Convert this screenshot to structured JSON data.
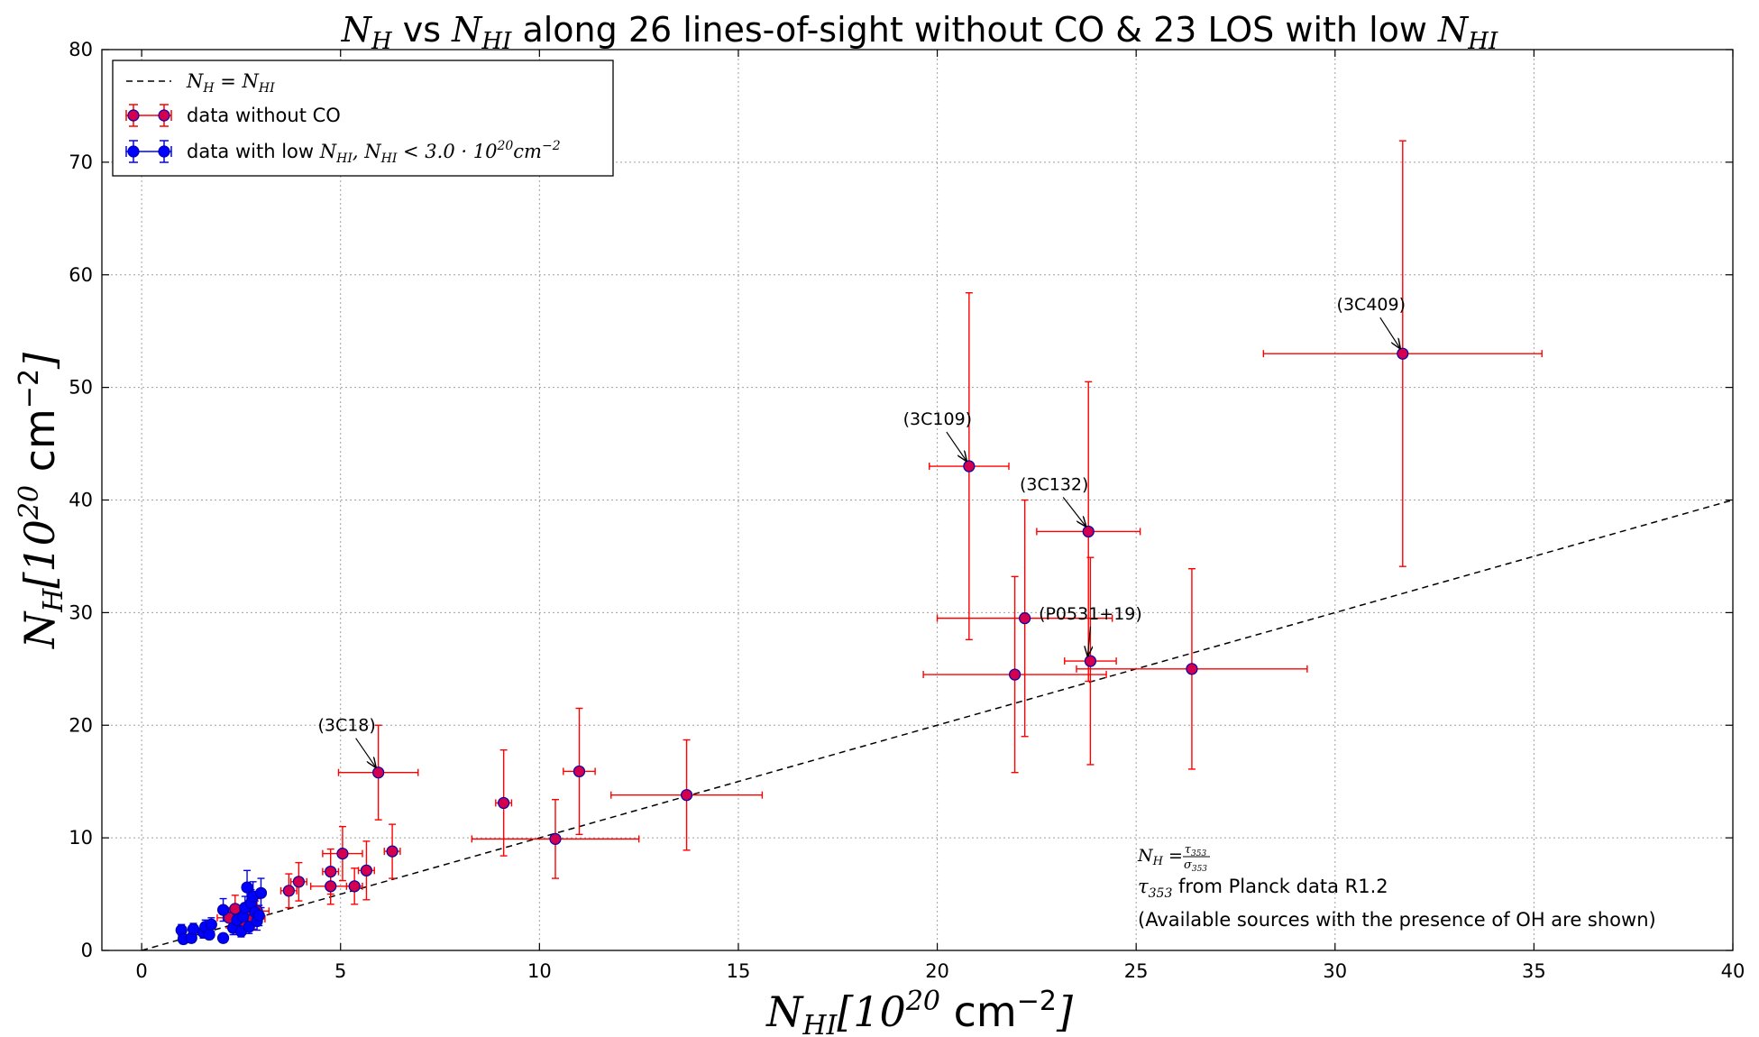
{
  "chart_data": {
    "type": "scatter",
    "title": {
      "pre_sym": "N",
      "pre_sub": "H",
      "mid": " vs ",
      "sym2": "N",
      "sub2": "HI",
      "post": " along 26 lines-of-sight without CO & 23 LOS with low ",
      "sym3": "N",
      "sub3": "HI"
    },
    "xlabel": {
      "sym": "N",
      "sub": "HI",
      "unit_open": "[10",
      "exp": "20",
      "unit_mid": " cm",
      "exp2": "−2",
      "unit_close": "]"
    },
    "ylabel": {
      "sym": "N",
      "sub": "H",
      "unit_open": "[10",
      "exp": "20",
      "unit_mid": " cm",
      "exp2": "−2",
      "unit_close": "]"
    },
    "xlim": [
      -1,
      40
    ],
    "ylim": [
      0,
      80
    ],
    "x_ticks": [
      0,
      5,
      10,
      15,
      20,
      25,
      30,
      35,
      40
    ],
    "y_ticks": [
      0,
      10,
      20,
      30,
      40,
      50,
      60,
      70,
      80
    ],
    "grid": true,
    "legend_position": "top-left",
    "legend": [
      {
        "kind": "line",
        "sym": "N",
        "sub": "H",
        "eq": " = ",
        "sym2": "N",
        "sub2": "HI"
      },
      {
        "kind": "red",
        "label": "data without CO"
      },
      {
        "kind": "blue",
        "label": "data with low ",
        "sym": "N",
        "sub": "HI",
        "comma": ", ",
        "sym2": "N",
        "sub2": "HI",
        "lt": " < 3.0 · 10",
        "exp": "20",
        "unit": "cm",
        "exp2": "−2"
      }
    ],
    "colors": {
      "red": "#ff0000",
      "marker_fill_red": "#d4004f",
      "blue": "#0000ff",
      "marker_edge": "#0000aa",
      "dashed": "#000000",
      "grid": "#a0a0a0"
    },
    "reference_line": {
      "name": "N_H = N_HI",
      "from": [
        0,
        0
      ],
      "to": [
        40,
        40
      ],
      "style": "dashed"
    },
    "series": [
      {
        "name": "data without CO",
        "points": [
          {
            "x": 31.7,
            "y": 53.0,
            "xerr": 3.5,
            "yerr_lo": 18.9,
            "yerr_hi": 18.9,
            "label": "(3C409)"
          },
          {
            "x": 20.8,
            "y": 43.0,
            "xerr": 1.0,
            "yerr_lo": 15.4,
            "yerr_hi": 15.4,
            "label": "(3C109)"
          },
          {
            "x": 23.8,
            "y": 37.2,
            "xerr": 1.3,
            "yerr_lo": 13.3,
            "yerr_hi": 13.3,
            "label": "(3C132)"
          },
          {
            "x": 22.2,
            "y": 29.5,
            "xerr": 2.2,
            "yerr_lo": 10.5,
            "yerr_hi": 10.5
          },
          {
            "x": 23.85,
            "y": 25.7,
            "xerr": 0.65,
            "yerr_lo": 9.2,
            "yerr_hi": 9.2,
            "label": "(P0531+19)"
          },
          {
            "x": 21.95,
            "y": 24.5,
            "xerr": 2.3,
            "yerr_lo": 8.7,
            "yerr_hi": 8.7
          },
          {
            "x": 26.4,
            "y": 25.0,
            "xerr": 2.9,
            "yerr_lo": 8.9,
            "yerr_hi": 8.9
          },
          {
            "x": 5.95,
            "y": 15.8,
            "xerr": 1.0,
            "yerr_lo": 4.2,
            "yerr_hi": 4.2,
            "label": "(3C18)"
          },
          {
            "x": 9.1,
            "y": 13.1,
            "xerr": 0.2,
            "yerr_lo": 4.7,
            "yerr_hi": 4.7
          },
          {
            "x": 11.0,
            "y": 15.9,
            "xerr": 0.4,
            "yerr_lo": 5.6,
            "yerr_hi": 5.6
          },
          {
            "x": 13.7,
            "y": 13.8,
            "xerr": 1.9,
            "yerr_lo": 4.9,
            "yerr_hi": 4.9
          },
          {
            "x": 10.4,
            "y": 9.9,
            "xerr": 2.1,
            "yerr_lo": 3.5,
            "yerr_hi": 3.5
          },
          {
            "x": 3.7,
            "y": 5.3,
            "xerr": 0.2,
            "yerr_lo": 1.5,
            "yerr_hi": 1.5
          },
          {
            "x": 3.95,
            "y": 6.1,
            "xerr": 0.2,
            "yerr_lo": 1.7,
            "yerr_hi": 1.7
          },
          {
            "x": 4.75,
            "y": 7.0,
            "xerr": 0.2,
            "yerr_lo": 2.0,
            "yerr_hi": 2.0
          },
          {
            "x": 4.75,
            "y": 5.7,
            "xerr": 0.5,
            "yerr_lo": 1.6,
            "yerr_hi": 1.6
          },
          {
            "x": 5.05,
            "y": 8.6,
            "xerr": 0.5,
            "yerr_lo": 2.4,
            "yerr_hi": 2.4
          },
          {
            "x": 5.35,
            "y": 5.7,
            "xerr": 0.2,
            "yerr_lo": 1.6,
            "yerr_hi": 1.6
          },
          {
            "x": 5.65,
            "y": 7.1,
            "xerr": 0.2,
            "yerr_lo": 2.6,
            "yerr_hi": 2.6
          },
          {
            "x": 6.3,
            "y": 8.8,
            "xerr": 0.2,
            "yerr_lo": 2.4,
            "yerr_hi": 2.4
          },
          {
            "x": 2.35,
            "y": 3.7,
            "xerr": 0.3,
            "yerr_lo": 1.2,
            "yerr_hi": 1.2
          },
          {
            "x": 2.6,
            "y": 3.2,
            "xerr": 0.3,
            "yerr_lo": 1.0,
            "yerr_hi": 1.0
          },
          {
            "x": 2.8,
            "y": 2.8,
            "xerr": 0.3,
            "yerr_lo": 0.9,
            "yerr_hi": 0.9
          },
          {
            "x": 2.5,
            "y": 2.3,
            "xerr": 0.3,
            "yerr_lo": 0.8,
            "yerr_hi": 0.8
          },
          {
            "x": 2.2,
            "y": 2.9,
            "xerr": 0.3,
            "yerr_lo": 0.9,
            "yerr_hi": 0.9
          },
          {
            "x": 2.9,
            "y": 3.5,
            "xerr": 0.3,
            "yerr_lo": 1.1,
            "yerr_hi": 1.1
          }
        ]
      },
      {
        "name": "data with low N_HI",
        "points": [
          {
            "x": 1.0,
            "y": 1.8,
            "xerr": 0.1,
            "yerr_lo": 0.5,
            "yerr_hi": 0.5
          },
          {
            "x": 1.05,
            "y": 1.0,
            "xerr": 0.1,
            "yerr_lo": 0.4,
            "yerr_hi": 0.4
          },
          {
            "x": 1.25,
            "y": 1.1,
            "xerr": 0.1,
            "yerr_lo": 0.4,
            "yerr_hi": 0.4
          },
          {
            "x": 1.3,
            "y": 1.9,
            "xerr": 0.1,
            "yerr_lo": 0.5,
            "yerr_hi": 0.5
          },
          {
            "x": 1.55,
            "y": 1.6,
            "xerr": 0.1,
            "yerr_lo": 0.5,
            "yerr_hi": 0.5
          },
          {
            "x": 1.6,
            "y": 2.1,
            "xerr": 0.1,
            "yerr_lo": 0.6,
            "yerr_hi": 0.6
          },
          {
            "x": 1.7,
            "y": 1.4,
            "xerr": 0.1,
            "yerr_lo": 0.4,
            "yerr_hi": 0.4
          },
          {
            "x": 1.75,
            "y": 2.3,
            "xerr": 0.1,
            "yerr_lo": 0.6,
            "yerr_hi": 0.6
          },
          {
            "x": 2.05,
            "y": 1.1,
            "xerr": 0.1,
            "yerr_lo": 0.4,
            "yerr_hi": 0.4
          },
          {
            "x": 2.05,
            "y": 3.6,
            "xerr": 0.1,
            "yerr_lo": 1.0,
            "yerr_hi": 1.0
          },
          {
            "x": 2.3,
            "y": 2.0,
            "xerr": 0.1,
            "yerr_lo": 0.6,
            "yerr_hi": 0.6
          },
          {
            "x": 2.4,
            "y": 2.7,
            "xerr": 0.1,
            "yerr_lo": 0.8,
            "yerr_hi": 0.8
          },
          {
            "x": 2.5,
            "y": 1.7,
            "xerr": 0.1,
            "yerr_lo": 0.5,
            "yerr_hi": 0.5
          },
          {
            "x": 2.55,
            "y": 3.0,
            "xerr": 0.1,
            "yerr_lo": 0.9,
            "yerr_hi": 0.9
          },
          {
            "x": 2.6,
            "y": 3.8,
            "xerr": 0.1,
            "yerr_lo": 1.0,
            "yerr_hi": 1.0
          },
          {
            "x": 2.65,
            "y": 5.6,
            "xerr": 0.1,
            "yerr_lo": 1.5,
            "yerr_hi": 1.5
          },
          {
            "x": 2.7,
            "y": 2.1,
            "xerr": 0.1,
            "yerr_lo": 0.6,
            "yerr_hi": 0.6
          },
          {
            "x": 2.75,
            "y": 4.2,
            "xerr": 0.1,
            "yerr_lo": 1.2,
            "yerr_hi": 1.2
          },
          {
            "x": 2.8,
            "y": 4.8,
            "xerr": 0.1,
            "yerr_lo": 1.3,
            "yerr_hi": 1.3
          },
          {
            "x": 2.85,
            "y": 3.4,
            "xerr": 0.1,
            "yerr_lo": 1.0,
            "yerr_hi": 1.0
          },
          {
            "x": 2.9,
            "y": 2.6,
            "xerr": 0.1,
            "yerr_lo": 0.8,
            "yerr_hi": 0.8
          },
          {
            "x": 2.95,
            "y": 3.1,
            "xerr": 0.1,
            "yerr_lo": 0.9,
            "yerr_hi": 0.9
          },
          {
            "x": 3.0,
            "y": 5.1,
            "xerr": 0.1,
            "yerr_lo": 1.3,
            "yerr_hi": 1.3
          }
        ]
      }
    ],
    "annotation": {
      "formula": {
        "sym": "N",
        "sub": "H",
        "eq": " = ",
        "num_sym": "τ",
        "num_sub": "353",
        "den_sym": "σ",
        "den_sub": "353"
      },
      "line2": {
        "sym": "τ",
        "sub": "353",
        "text": " from Planck data R1.2"
      },
      "line3": "(Available sources with the presence of OH are shown)"
    }
  }
}
